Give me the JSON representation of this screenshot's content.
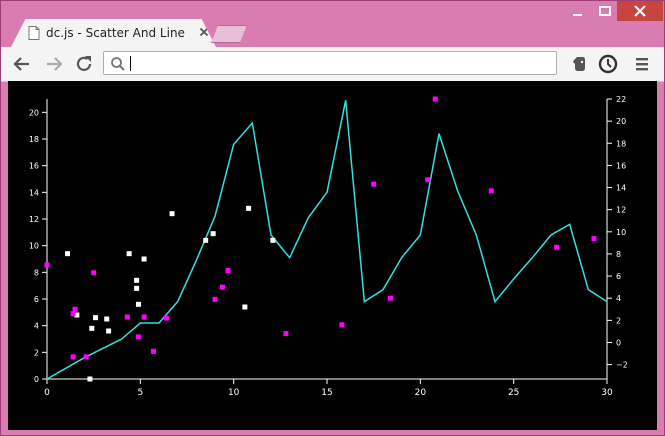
{
  "browser": {
    "tab_title": "dc.js - Scatter And Line",
    "address_value": "",
    "icons": [
      "page-icon",
      "close-icon",
      "back-icon",
      "forward-icon",
      "reload-icon",
      "search-icon",
      "evernote-icon",
      "sync-icon",
      "menu-icon"
    ]
  },
  "colors": {
    "line": "#33e0e0",
    "scatter_left": "#ffffff",
    "scatter_right": "#ff00ff",
    "background": "#000000"
  },
  "chart_data": {
    "type": "scatter",
    "title": "",
    "xlabel": "",
    "ylabel": "",
    "xlim": [
      0,
      30
    ],
    "ylim_left": [
      0,
      21
    ],
    "ylim_right": [
      -3.3,
      22
    ],
    "x_ticks": [
      "0",
      "5",
      "10",
      "15",
      "20",
      "25",
      "30"
    ],
    "y_left_ticks": [
      "0",
      "2",
      "4",
      "6",
      "8",
      "10",
      "12",
      "14",
      "16",
      "18",
      "20"
    ],
    "y_right_ticks": [
      "−2",
      "0",
      "2",
      "4",
      "6",
      "8",
      "10",
      "12",
      "14",
      "16",
      "18",
      "20",
      "22"
    ],
    "series": [
      {
        "type": "line",
        "axis": "left",
        "x": [
          0,
          1,
          2,
          3,
          4,
          5,
          6,
          7,
          8,
          9,
          10,
          11,
          12,
          13,
          14,
          15,
          16,
          17,
          18,
          19,
          20,
          21,
          22,
          23,
          24,
          25,
          26,
          27,
          28,
          29,
          30
        ],
        "y": [
          0,
          0.8,
          1.6,
          2.3,
          3.0,
          4.2,
          4.2,
          5.8,
          8.9,
          12.2,
          17.6,
          19.2,
          10.8,
          9.1,
          12.1,
          14.0,
          20.9,
          5.8,
          6.7,
          9.1,
          10.8,
          18.4,
          14.1,
          10.8,
          5.8,
          7.5,
          9.1,
          10.8,
          11.6,
          6.7,
          5.8
        ]
      },
      {
        "type": "scatter",
        "axis": "left",
        "points": [
          [
            1.1,
            9.4
          ],
          [
            1.6,
            4.8
          ],
          [
            2.3,
            0
          ],
          [
            2.4,
            3.8
          ],
          [
            2.6,
            4.6
          ],
          [
            3.2,
            4.5
          ],
          [
            3.3,
            3.6
          ],
          [
            4.4,
            9.4
          ],
          [
            4.8,
            7.4
          ],
          [
            4.8,
            6.8
          ],
          [
            4.9,
            5.6
          ],
          [
            5.2,
            9.0
          ],
          [
            6.7,
            12.4
          ],
          [
            8.5,
            10.4
          ],
          [
            8.9,
            10.9
          ],
          [
            10.6,
            5.4
          ],
          [
            10.8,
            12.8
          ],
          [
            12.1,
            10.4
          ]
        ]
      },
      {
        "type": "scatter",
        "axis": "right",
        "points": [
          [
            0,
            7.0
          ],
          [
            1.4,
            -1.3
          ],
          [
            1.4,
            2.6
          ],
          [
            1.5,
            3.0
          ],
          [
            2.1,
            -1.3
          ],
          [
            2.5,
            6.3
          ],
          [
            4.3,
            2.3
          ],
          [
            4.9,
            0.5
          ],
          [
            5.2,
            2.3
          ],
          [
            5.7,
            -0.8
          ],
          [
            6.4,
            2.2
          ],
          [
            9.0,
            3.9
          ],
          [
            9.4,
            5.0
          ],
          [
            9.7,
            6.5
          ],
          [
            12.8,
            0.8
          ],
          [
            15.8,
            1.6
          ],
          [
            17.5,
            14.3
          ],
          [
            18.4,
            4.0
          ],
          [
            20.4,
            14.7
          ],
          [
            20.8,
            22
          ],
          [
            23.8,
            13.7
          ],
          [
            27.3,
            8.6
          ],
          [
            29.3,
            9.4
          ]
        ]
      }
    ]
  }
}
